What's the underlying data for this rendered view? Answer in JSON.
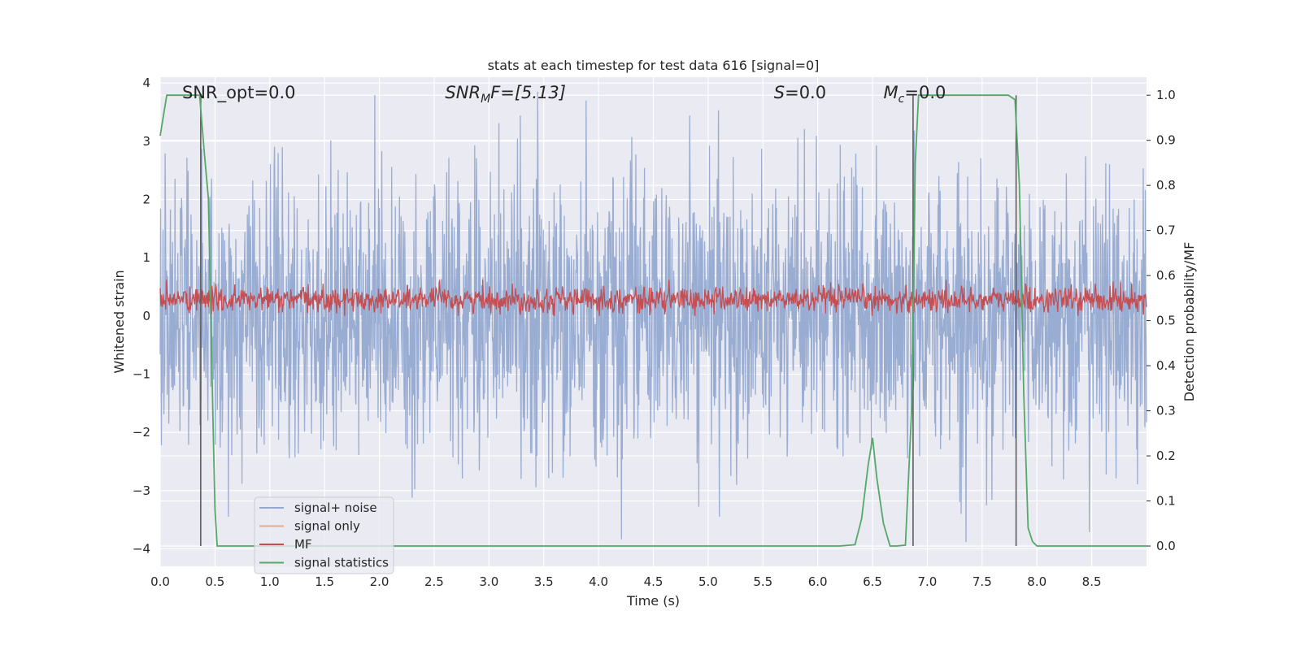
{
  "chart_data": {
    "type": "line",
    "title": "stats at each timestep for test data 616 [signal=0]",
    "xlabel": "Time (s)",
    "ylabel": "Whitened strain",
    "y2label": "Detection probability/MF",
    "xlim": [
      0.0,
      9.0
    ],
    "ylim": [
      -4.3,
      4.1
    ],
    "y2lim": [
      -0.045,
      1.04
    ],
    "xticks": [
      "0.0",
      "0.5",
      "1.0",
      "1.5",
      "2.0",
      "2.5",
      "3.0",
      "3.5",
      "4.0",
      "4.5",
      "5.0",
      "5.5",
      "6.0",
      "6.5",
      "7.0",
      "7.5",
      "8.0",
      "8.5"
    ],
    "yticks": [
      "4",
      "3",
      "2",
      "1",
      "0",
      "−1",
      "−2",
      "−3",
      "−4"
    ],
    "y2ticks": [
      "1.0",
      "0.9",
      "0.8",
      "0.7",
      "0.6",
      "0.5",
      "0.4",
      "0.3",
      "0.2",
      "0.1",
      "0.0"
    ],
    "grid": true,
    "legend_position": "lower-left",
    "annotations": {
      "snr_opt": "SNR_opt=0.0",
      "snr_mf_base": "SNR",
      "snr_mf_sub": "M",
      "snr_mf_rest": "F=[5.13]",
      "s_label": "S",
      "s_rest": "=0.0",
      "mc_label": "M",
      "mc_sub": "c",
      "mc_rest": "=0.0"
    },
    "vertical_lines_x": [
      0.37,
      6.87,
      7.81
    ],
    "series": [
      {
        "name": "signal+ noise",
        "color": "#95a9d0",
        "axis": "left",
        "description_values": "noise, approx amplitude ±1.6 typical, peaks ±3.8"
      },
      {
        "name": "signal only",
        "color": "#e8a98a",
        "axis": "left",
        "values": []
      },
      {
        "name": "MF",
        "color": "#c44e52",
        "axis": "left",
        "range": [
          0.0,
          0.6
        ]
      },
      {
        "name": "signal statistics",
        "color": "#55a868",
        "axis": "right",
        "x": [
          0.0,
          0.06,
          0.12,
          0.18,
          0.24,
          0.3,
          0.36,
          0.4,
          0.44,
          0.48,
          0.5,
          0.52,
          1.0,
          2.0,
          3.0,
          4.0,
          5.0,
          6.0,
          6.2,
          6.34,
          6.4,
          6.46,
          6.5,
          6.54,
          6.6,
          6.66,
          6.72,
          6.8,
          6.86,
          6.89,
          6.92,
          6.95,
          7.0,
          7.5,
          7.74,
          7.8,
          7.84,
          7.88,
          7.92,
          7.96,
          8.0,
          8.5,
          9.0
        ],
        "values": [
          0.91,
          1.0,
          1.0,
          1.0,
          1.0,
          1.0,
          1.0,
          0.88,
          0.77,
          0.3,
          0.08,
          0.0,
          0.0,
          0.0,
          0.0,
          0.0,
          0.0,
          0.0,
          0.0,
          0.003,
          0.06,
          0.18,
          0.24,
          0.15,
          0.05,
          0.0,
          0.0,
          0.002,
          0.32,
          0.85,
          1.0,
          1.0,
          1.0,
          1.0,
          1.0,
          0.99,
          0.8,
          0.34,
          0.04,
          0.01,
          0.0,
          0.0,
          0.0
        ]
      }
    ]
  }
}
